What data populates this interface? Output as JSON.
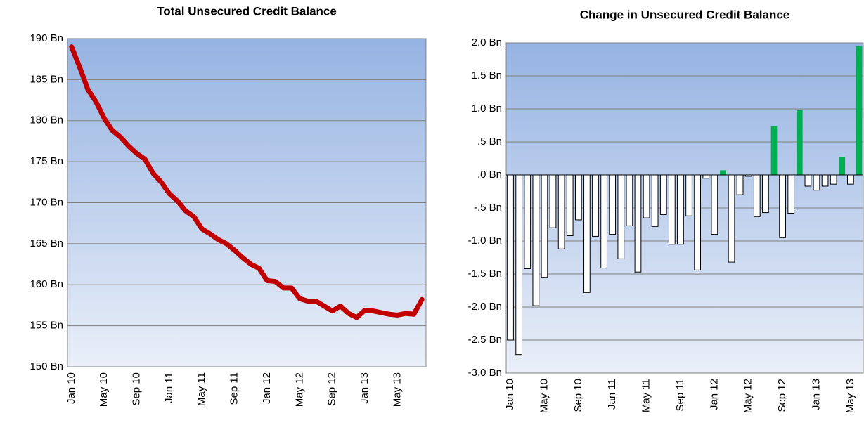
{
  "chart_data": [
    {
      "type": "line",
      "title": "Total Unsecured Credit Balance",
      "categories": [
        "Jan 10",
        null,
        null,
        null,
        "May 10",
        null,
        null,
        null,
        "Sep 10",
        null,
        null,
        null,
        "Jan 11",
        null,
        null,
        null,
        "May 11",
        null,
        null,
        null,
        "Sep 11",
        null,
        null,
        null,
        "Jan 12",
        null,
        null,
        null,
        "May 12",
        null,
        null,
        null,
        "Sep 12",
        null,
        null,
        null,
        "Jan 13",
        null,
        null,
        null,
        "May 13",
        null,
        null,
        null
      ],
      "series": [
        {
          "name": "Total Unsecured Credit Balance",
          "color": "#c00000",
          "values": [
            189,
            186.5,
            183.8,
            182.3,
            180.3,
            178.8,
            178,
            176.9,
            176,
            175.3,
            173.6,
            172.5,
            171.1,
            170.2,
            169,
            168.3,
            166.8,
            166.2,
            165.5,
            165,
            164.2,
            163.3,
            162.5,
            162,
            160.5,
            160.4,
            159.6,
            159.6,
            158.3,
            158,
            158,
            157.4,
            156.8,
            157.4,
            156.5,
            156,
            156.9,
            156.8,
            156.6,
            156.4,
            156.3,
            156.5,
            156.4,
            158.2
          ]
        }
      ],
      "ylim": [
        150,
        190
      ],
      "yticks": [
        {
          "value": 150,
          "label": "150 Bn"
        },
        {
          "value": 155,
          "label": "155 Bn"
        },
        {
          "value": 160,
          "label": "160 Bn"
        },
        {
          "value": 165,
          "label": "165 Bn"
        },
        {
          "value": 170,
          "label": "170 Bn"
        },
        {
          "value": 175,
          "label": "175 Bn"
        },
        {
          "value": 180,
          "label": "180 Bn"
        },
        {
          "value": 185,
          "label": "185 Bn"
        },
        {
          "value": 190,
          "label": "190 Bn"
        }
      ],
      "grid": true
    },
    {
      "type": "bar",
      "title": "Change in Unsecured Credit Balance",
      "categories": [
        "Jan 10",
        null,
        null,
        null,
        "May 10",
        null,
        null,
        null,
        "Sep 10",
        null,
        null,
        null,
        "Jan 11",
        null,
        null,
        null,
        "May 11",
        null,
        null,
        null,
        "Sep 11",
        null,
        null,
        null,
        "Jan 12",
        null,
        null,
        null,
        "May 12",
        null,
        null,
        null,
        "Sep 12",
        null,
        null,
        null,
        "Jan 13",
        null,
        null,
        null,
        "May 13",
        null
      ],
      "values": [
        -2.5,
        -2.72,
        -1.42,
        -1.98,
        -1.55,
        -0.8,
        -1.12,
        -0.92,
        -0.68,
        -1.78,
        -0.93,
        -1.41,
        -0.9,
        -1.27,
        -0.77,
        -1.47,
        -0.65,
        -0.78,
        -0.6,
        -1.05,
        -1.05,
        -0.62,
        -1.44,
        -0.05,
        -0.9,
        0.07,
        -1.32,
        -0.3,
        -0.02,
        -0.63,
        -0.57,
        0.74,
        -0.95,
        -0.58,
        0.98,
        -0.17,
        -0.23,
        -0.17,
        -0.14,
        0.27,
        -0.14,
        1.95
      ],
      "positive_color": "#00b050",
      "negative_color": "#ffffff",
      "ylim": [
        -3,
        2
      ],
      "yticks": [
        {
          "value": -3,
          "label": "-3.0 Bn"
        },
        {
          "value": -2.5,
          "label": "-2.5 Bn"
        },
        {
          "value": -2,
          "label": "-2.0 Bn"
        },
        {
          "value": -1.5,
          "label": "-1.5 Bn"
        },
        {
          "value": -1,
          "label": "-1.0 Bn"
        },
        {
          "value": -0.5,
          "label": "-.5 Bn"
        },
        {
          "value": 0,
          "label": ".0 Bn"
        },
        {
          "value": 0.5,
          "label": ".5 Bn"
        },
        {
          "value": 1,
          "label": "1.0 Bn"
        },
        {
          "value": 1.5,
          "label": "1.5 Bn"
        },
        {
          "value": 2,
          "label": "2.0 Bn"
        }
      ],
      "grid": true
    }
  ]
}
